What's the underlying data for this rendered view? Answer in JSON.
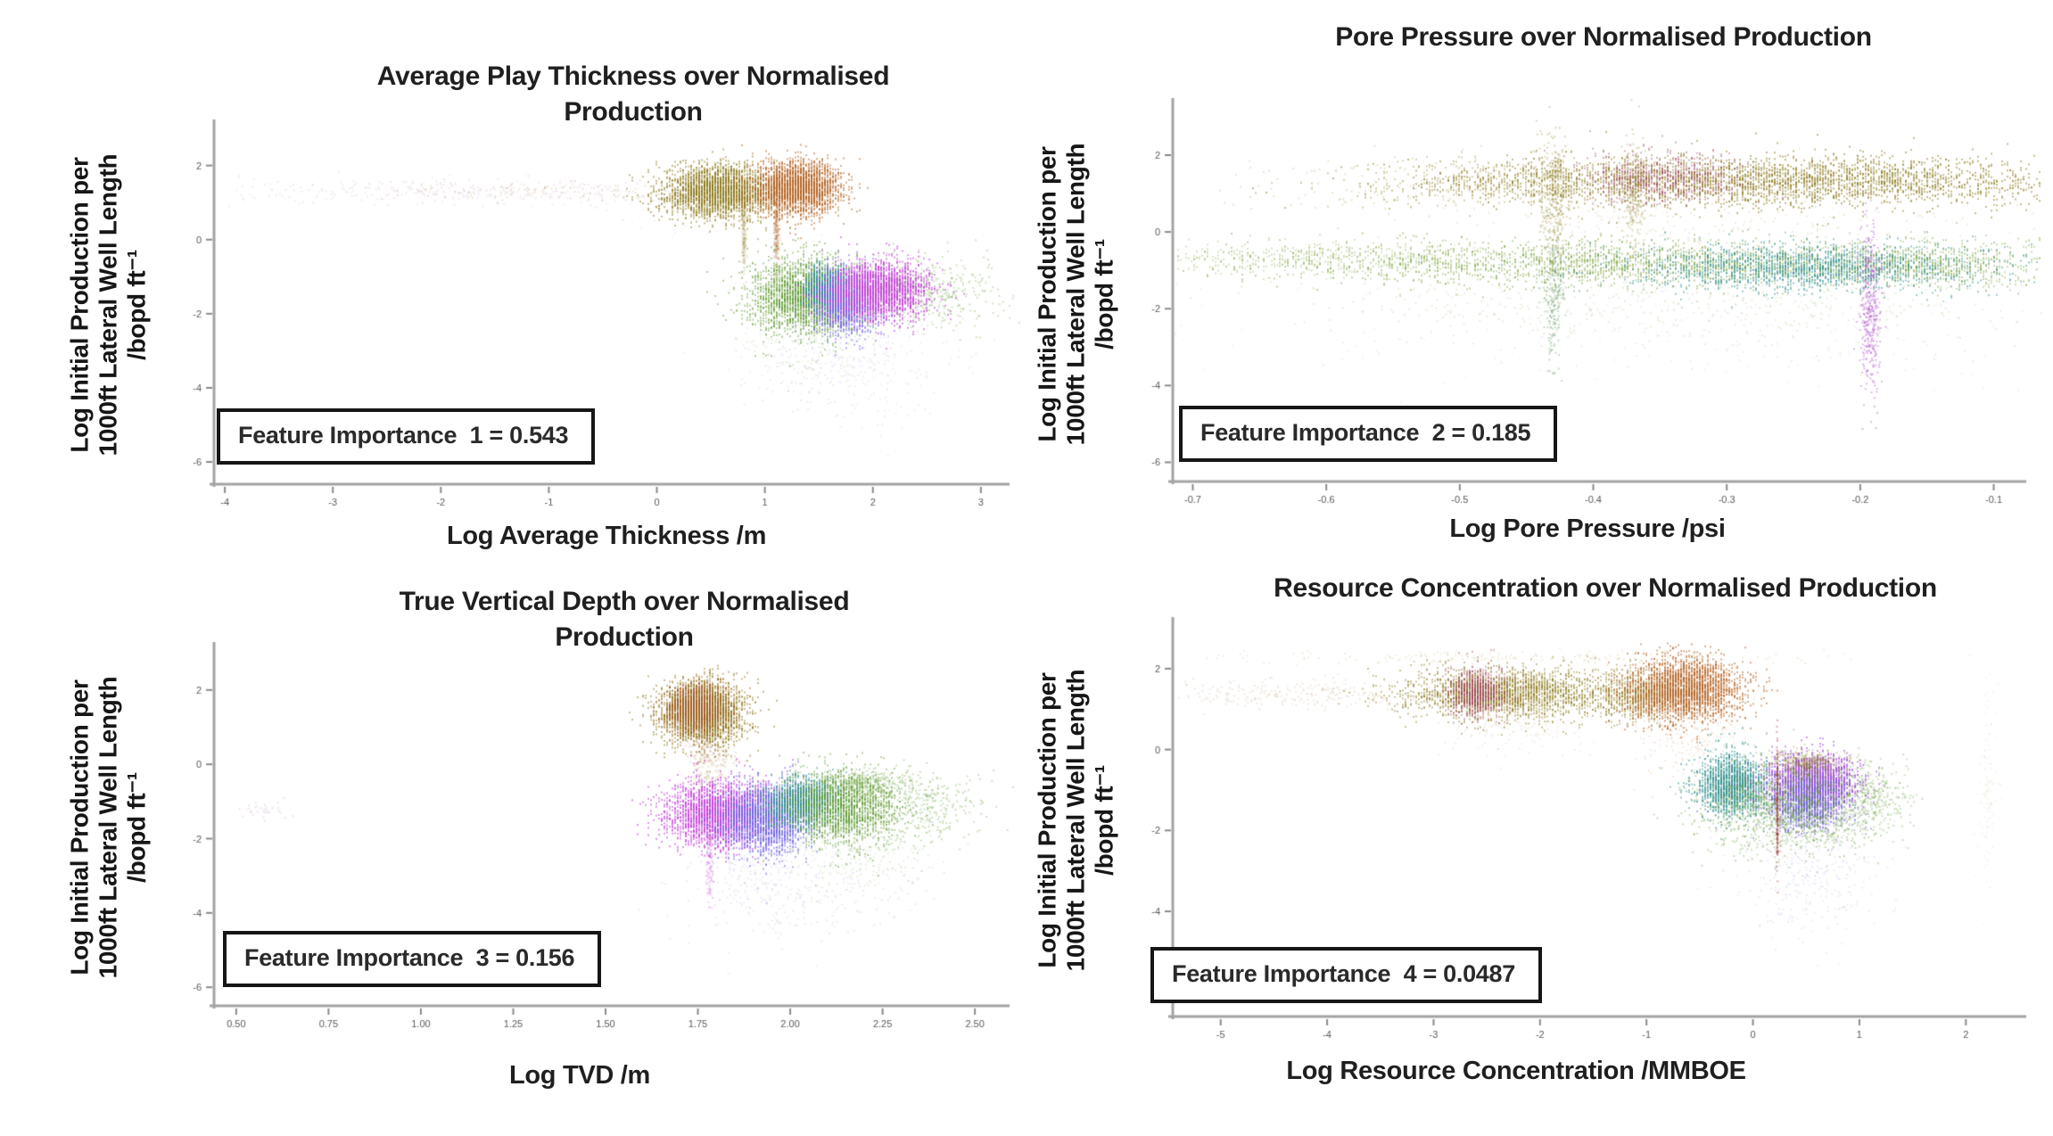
{
  "page": {
    "background": "#ffffff"
  },
  "y_axis_label_lines": [
    "Log Initial Production per",
    "1000ft Lateral Well Length",
    "/bopd ft⁻¹"
  ],
  "chart_data": [
    {
      "type": "scatter",
      "title_lines": [
        "Average Play Thickness over Normalised",
        "Production"
      ],
      "xlabel": "Log Average Thickness /m",
      "ylabel": "Log Initial Production per 1000ft Lateral Well Length /bopd ft⁻¹",
      "feature_importance": "Feature Importance  1 = 0.543",
      "x_ticks": [
        "-4",
        "-3",
        "-2",
        "-1",
        "0",
        "1",
        "2",
        "3"
      ],
      "y_ticks": [
        "2",
        "0",
        "-2",
        "-4",
        "-6"
      ],
      "x_range": [
        -4.1,
        3.15
      ],
      "y_range": [
        -6.6,
        3.05
      ],
      "grid": false,
      "legend": null,
      "clusters": [
        {
          "color": "#c9a2ca",
          "n": 260,
          "cx": -1.9,
          "cy": 1.3,
          "sx": 1.15,
          "sy": 0.18,
          "alpha": 0.22,
          "streak": 0
        },
        {
          "color": "#b5875a",
          "n": 160,
          "cx": -1.0,
          "cy": 1.32,
          "sx": 0.9,
          "sy": 0.13,
          "alpha": 0.22,
          "streak": 0
        },
        {
          "color": "#8d7a1c",
          "n": 2600,
          "cx": 0.58,
          "cy": 1.33,
          "sx": 0.26,
          "sy": 0.34,
          "alpha": 0.5,
          "streak": 1
        },
        {
          "color": "#b35f1e",
          "n": 2300,
          "cx": 1.3,
          "cy": 1.42,
          "sx": 0.2,
          "sy": 0.36,
          "alpha": 0.5,
          "streak": 1
        },
        {
          "color": "#b35f1e",
          "n": 220,
          "cx": 1.1,
          "cy": 0.25,
          "sx": 0.012,
          "sy": 0.55,
          "alpha": 0.22,
          "streak": 0
        },
        {
          "color": "#8d7a1c",
          "n": 170,
          "cx": 0.8,
          "cy": 0.2,
          "sx": 0.01,
          "sy": 0.5,
          "alpha": 0.18,
          "streak": 0
        },
        {
          "color": "#5d9a2e",
          "n": 2400,
          "cx": 1.38,
          "cy": -1.5,
          "sx": 0.26,
          "sy": 0.5,
          "alpha": 0.45,
          "streak": 1
        },
        {
          "color": "#5d9a2e",
          "n": 420,
          "cx": 2.45,
          "cy": -1.35,
          "sx": 0.33,
          "sy": 0.45,
          "alpha": 0.28,
          "streak": 0
        },
        {
          "color": "#2f8f8f",
          "n": 800,
          "cx": 1.55,
          "cy": -1.3,
          "sx": 0.09,
          "sy": 0.3,
          "alpha": 0.5,
          "streak": 1
        },
        {
          "color": "#6f5fe6",
          "n": 1400,
          "cx": 1.75,
          "cy": -1.65,
          "sx": 0.14,
          "sy": 0.42,
          "alpha": 0.5,
          "streak": 1
        },
        {
          "color": "#c43fd8",
          "n": 2200,
          "cx": 2.05,
          "cy": -1.35,
          "sx": 0.22,
          "sy": 0.38,
          "alpha": 0.55,
          "streak": 1
        },
        {
          "color": "#a293e0",
          "n": 320,
          "cx": 1.85,
          "cy": -3.0,
          "sx": 0.45,
          "sy": 0.85,
          "alpha": 0.16,
          "streak": 0
        },
        {
          "color": "#5d9a2e",
          "n": 220,
          "cx": 1.45,
          "cy": -2.9,
          "sx": 0.35,
          "sy": 0.75,
          "alpha": 0.14,
          "streak": 0
        },
        {
          "color": "#c9a2ca",
          "n": 80,
          "cx": 0.3,
          "cy": 0.9,
          "sx": 0.7,
          "sy": 0.5,
          "alpha": 0.15,
          "streak": 0
        }
      ]
    },
    {
      "type": "scatter",
      "title_lines": [
        "Pore Pressure over Normalised Production"
      ],
      "xlabel": "Log Pore Pressure /psi",
      "ylabel": "Log Initial Production per 1000ft Lateral Well Length /bopd ft⁻¹",
      "feature_importance": "Feature Importance  2 = 0.185",
      "x_ticks": [
        "-0.7",
        "-0.6",
        "-0.5",
        "-0.4",
        "-0.3",
        "-0.2",
        "-0.1"
      ],
      "y_ticks": [
        "2",
        "0",
        "-2",
        "-4",
        "-6"
      ],
      "x_range": [
        -0.715,
        -0.085
      ],
      "y_range": [
        -6.5,
        3.3
      ],
      "grid": false,
      "legend": null,
      "clusters": [
        {
          "color": "#8d7a1c",
          "n": 3000,
          "cx": -0.26,
          "cy": 1.35,
          "sx": 0.12,
          "sy": 0.33,
          "alpha": 0.5,
          "streak": 1
        },
        {
          "color": "#8d7a1c",
          "n": 500,
          "cx": -0.47,
          "cy": 1.3,
          "sx": 0.05,
          "sy": 0.28,
          "alpha": 0.35,
          "streak": 1
        },
        {
          "color": "#9a4460",
          "n": 700,
          "cx": -0.35,
          "cy": 1.45,
          "sx": 0.03,
          "sy": 0.33,
          "alpha": 0.4,
          "streak": 1
        },
        {
          "color": "#8d7a1c",
          "n": 350,
          "cx": -0.43,
          "cy": 0.9,
          "sx": 0.006,
          "sy": 0.9,
          "alpha": 0.3,
          "streak": 0
        },
        {
          "color": "#8d7a1c",
          "n": 250,
          "cx": -0.37,
          "cy": 1.0,
          "sx": 0.005,
          "sy": 0.7,
          "alpha": 0.28,
          "streak": 0
        },
        {
          "color": "#8d7a1c",
          "n": 250,
          "cx": -0.3,
          "cy": 0.3,
          "sx": 0.1,
          "sy": 0.5,
          "alpha": 0.14,
          "streak": 0
        },
        {
          "color": "#7fa63a",
          "n": 600,
          "cx": -0.6,
          "cy": -0.7,
          "sx": 0.07,
          "sy": 0.22,
          "alpha": 0.3,
          "streak": 1
        },
        {
          "color": "#6f9a2e",
          "n": 2000,
          "cx": -0.36,
          "cy": -0.8,
          "sx": 0.13,
          "sy": 0.3,
          "alpha": 0.42,
          "streak": 1
        },
        {
          "color": "#2f8f8f",
          "n": 1700,
          "cx": -0.235,
          "cy": -0.9,
          "sx": 0.07,
          "sy": 0.3,
          "alpha": 0.48,
          "streak": 1
        },
        {
          "color": "#6f9a2e",
          "n": 600,
          "cx": -0.15,
          "cy": -0.8,
          "sx": 0.05,
          "sy": 0.3,
          "alpha": 0.35,
          "streak": 1
        },
        {
          "color": "#6f9a2e",
          "n": 550,
          "cx": -0.33,
          "cy": -1.9,
          "sx": 0.16,
          "sy": 0.55,
          "alpha": 0.16,
          "streak": 0
        },
        {
          "color": "#b050c8",
          "n": 380,
          "cx": -0.193,
          "cy": -2.0,
          "sx": 0.004,
          "sy": 1.1,
          "alpha": 0.4,
          "streak": 0
        },
        {
          "color": "#4f8a50",
          "n": 220,
          "cx": -0.43,
          "cy": -1.6,
          "sx": 0.004,
          "sy": 0.8,
          "alpha": 0.3,
          "streak": 0
        },
        {
          "color": "#a293e0",
          "n": 160,
          "cx": -0.3,
          "cy": -2.6,
          "sx": 0.18,
          "sy": 0.8,
          "alpha": 0.12,
          "streak": 0
        },
        {
          "color": "#8d7a1c",
          "n": 120,
          "cx": -0.55,
          "cy": 1.3,
          "sx": 0.07,
          "sy": 0.4,
          "alpha": 0.2,
          "streak": 0
        }
      ]
    },
    {
      "type": "scatter",
      "title_lines": [
        "True Vertical Depth over Normalised",
        "Production"
      ],
      "xlabel": "Log TVD /m",
      "ylabel": "Log Initial Production per 1000ft Lateral Well Length /bopd ft⁻¹",
      "feature_importance": "Feature Importance  3 = 0.156",
      "x_ticks": [
        "0.50",
        "0.75",
        "1.00",
        "1.25",
        "1.50",
        "1.75",
        "2.00",
        "2.25",
        "2.50"
      ],
      "y_ticks": [
        "2",
        "0",
        "-2",
        "-4",
        "-6"
      ],
      "x_range": [
        0.44,
        2.56
      ],
      "y_range": [
        -6.5,
        3.1
      ],
      "grid": false,
      "legend": null,
      "clusters": [
        {
          "color": "#8d7a1c",
          "n": 2400,
          "cx": 1.76,
          "cy": 1.4,
          "sx": 0.055,
          "sy": 0.42,
          "alpha": 0.5,
          "streak": 1
        },
        {
          "color": "#a05a1e",
          "n": 1600,
          "cx": 1.74,
          "cy": 1.55,
          "sx": 0.04,
          "sy": 0.32,
          "alpha": 0.42,
          "streak": 1
        },
        {
          "color": "#a05a1e",
          "n": 300,
          "cx": 1.78,
          "cy": 0.35,
          "sx": 0.03,
          "sy": 0.5,
          "alpha": 0.18,
          "streak": 0
        },
        {
          "color": "#c43fd8",
          "n": 2400,
          "cx": 1.8,
          "cy": -1.3,
          "sx": 0.07,
          "sy": 0.42,
          "alpha": 0.55,
          "streak": 1
        },
        {
          "color": "#6f5fe6",
          "n": 1900,
          "cx": 1.93,
          "cy": -1.45,
          "sx": 0.06,
          "sy": 0.45,
          "alpha": 0.5,
          "streak": 1
        },
        {
          "color": "#2f8f8f",
          "n": 1300,
          "cx": 2.03,
          "cy": -1.0,
          "sx": 0.05,
          "sy": 0.33,
          "alpha": 0.5,
          "streak": 1
        },
        {
          "color": "#5d9a2e",
          "n": 1700,
          "cx": 2.14,
          "cy": -1.15,
          "sx": 0.07,
          "sy": 0.5,
          "alpha": 0.45,
          "streak": 1
        },
        {
          "color": "#5d9a2e",
          "n": 400,
          "cx": 2.32,
          "cy": -1.1,
          "sx": 0.1,
          "sy": 0.45,
          "alpha": 0.3,
          "streak": 0
        },
        {
          "color": "#8a7ad0",
          "n": 420,
          "cx": 1.95,
          "cy": -2.9,
          "sx": 0.12,
          "sy": 0.85,
          "alpha": 0.15,
          "streak": 0
        },
        {
          "color": "#5d9a2e",
          "n": 260,
          "cx": 2.2,
          "cy": -2.6,
          "sx": 0.1,
          "sy": 0.7,
          "alpha": 0.14,
          "streak": 0
        },
        {
          "color": "#c43fd8",
          "n": 140,
          "cx": 1.78,
          "cy": -2.5,
          "sx": 0.005,
          "sy": 0.6,
          "alpha": 0.22,
          "streak": 0
        },
        {
          "color": "#c9a2ca",
          "n": 30,
          "cx": 0.56,
          "cy": -1.25,
          "sx": 0.05,
          "sy": 0.12,
          "alpha": 0.3,
          "streak": 0
        },
        {
          "color": "#5d9a2e",
          "n": 300,
          "cx": 2.2,
          "cy": -0.5,
          "sx": 0.08,
          "sy": 0.2,
          "alpha": 0.3,
          "streak": 0
        }
      ]
    },
    {
      "type": "scatter",
      "title_lines": [
        "Resource Concentration over Normalised Production"
      ],
      "xlabel": "Log Resource Concentration /MMBOE",
      "ylabel": "Log Initial Production per 1000ft Lateral Well Length /bopd ft⁻¹",
      "feature_importance": "Feature Importance  4 = 0.0487",
      "x_ticks": [
        "-5",
        "-4",
        "-3",
        "-2",
        "-1",
        "0",
        "1",
        "2"
      ],
      "y_ticks": [
        "2",
        "0",
        "-2",
        "-4",
        "-6"
      ],
      "x_range": [
        -5.45,
        2.45
      ],
      "y_range": [
        -6.6,
        3.1
      ],
      "grid": false,
      "legend": null,
      "clusters": [
        {
          "color": "#b0a050",
          "n": 200,
          "cx": -2.3,
          "cy": 2.3,
          "sx": 1.5,
          "sy": 0.08,
          "alpha": 0.18,
          "streak": 0
        },
        {
          "color": "#8d7a1c",
          "n": 2200,
          "cx": -2.3,
          "cy": 1.4,
          "sx": 0.5,
          "sy": 0.3,
          "alpha": 0.45,
          "streak": 1
        },
        {
          "color": "#9a4455",
          "n": 800,
          "cx": -2.6,
          "cy": 1.45,
          "sx": 0.13,
          "sy": 0.3,
          "alpha": 0.4,
          "streak": 1
        },
        {
          "color": "#8d7a1c",
          "n": 700,
          "cx": -1.05,
          "cy": 1.35,
          "sx": 0.22,
          "sy": 0.3,
          "alpha": 0.4,
          "streak": 1
        },
        {
          "color": "#b35f1e",
          "n": 2400,
          "cx": -0.65,
          "cy": 1.5,
          "sx": 0.27,
          "sy": 0.38,
          "alpha": 0.5,
          "streak": 1
        },
        {
          "color": "#b5875a",
          "n": 260,
          "cx": -4.3,
          "cy": 1.4,
          "sx": 0.7,
          "sy": 0.18,
          "alpha": 0.18,
          "streak": 0
        },
        {
          "color": "#b35f1e",
          "n": 240,
          "cx": -0.6,
          "cy": 0.5,
          "sx": 0.25,
          "sy": 0.5,
          "alpha": 0.13,
          "streak": 0
        },
        {
          "color": "#8d7a1c",
          "n": 180,
          "cx": -2.2,
          "cy": 0.7,
          "sx": 0.35,
          "sy": 0.4,
          "alpha": 0.11,
          "streak": 0
        },
        {
          "color": "#2f8f8f",
          "n": 1600,
          "cx": -0.2,
          "cy": -0.85,
          "sx": 0.16,
          "sy": 0.38,
          "alpha": 0.5,
          "streak": 1
        },
        {
          "color": "#a44be0",
          "n": 2100,
          "cx": 0.55,
          "cy": -0.8,
          "sx": 0.2,
          "sy": 0.33,
          "alpha": 0.55,
          "streak": 1
        },
        {
          "color": "#6f5fe6",
          "n": 1100,
          "cx": 0.5,
          "cy": -1.3,
          "sx": 0.18,
          "sy": 0.33,
          "alpha": 0.45,
          "streak": 1
        },
        {
          "color": "#5d9a2e",
          "n": 1500,
          "cx": 0.35,
          "cy": -1.4,
          "sx": 0.4,
          "sy": 0.55,
          "alpha": 0.33,
          "streak": 0
        },
        {
          "color": "#8d7a1c",
          "n": 300,
          "cx": 0.5,
          "cy": -0.3,
          "sx": 0.18,
          "sy": 0.14,
          "alpha": 0.3,
          "streak": 0
        },
        {
          "color": "#a03535",
          "n": 140,
          "cx": 0.22,
          "cy": -1.4,
          "sx": 0.004,
          "sy": 0.8,
          "alpha": 0.4,
          "streak": 0
        },
        {
          "color": "#8a7ad0",
          "n": 360,
          "cx": 0.55,
          "cy": -2.9,
          "sx": 0.3,
          "sy": 0.85,
          "alpha": 0.14,
          "streak": 0
        },
        {
          "color": "#9a9a5a",
          "n": 110,
          "cx": 2.2,
          "cy": -0.8,
          "sx": 0.05,
          "sy": 1.3,
          "alpha": 0.1,
          "streak": 0
        },
        {
          "color": "#5d9a2e",
          "n": 260,
          "cx": 1.1,
          "cy": -1.1,
          "sx": 0.18,
          "sy": 0.4,
          "alpha": 0.28,
          "streak": 0
        }
      ]
    }
  ]
}
